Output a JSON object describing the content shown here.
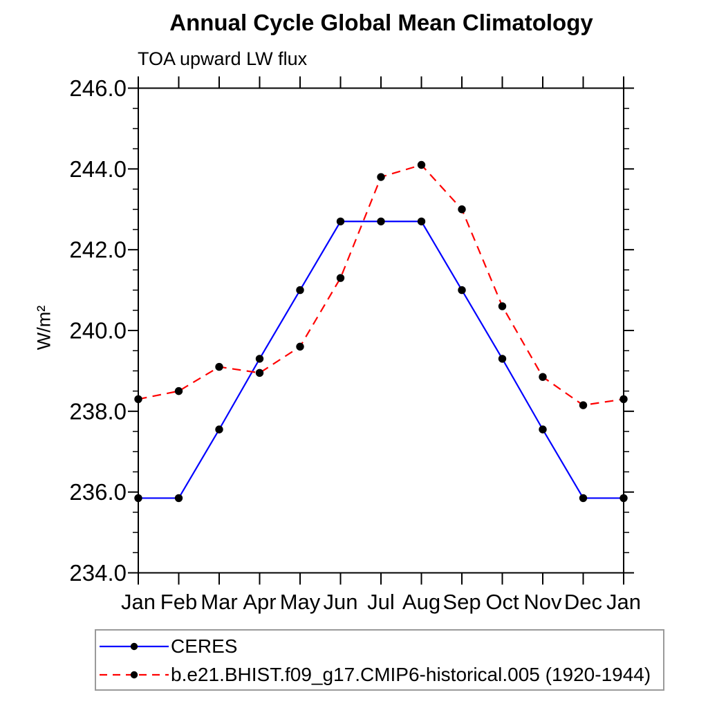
{
  "page": {
    "background": "#ffffff",
    "text_color": "#000000",
    "axis_color": "#000000",
    "legend_border_color": "#9a9a9a"
  },
  "chart_data": {
    "type": "line",
    "title": "Annual Cycle Global Mean Climatology",
    "subtitle": "TOA upward LW flux",
    "ylabel": "W/m²",
    "xlabel": "",
    "x_tick_labels": [
      "Jan",
      "Feb",
      "Mar",
      "Apr",
      "May",
      "Jun",
      "Jul",
      "Aug",
      "Sep",
      "Oct",
      "Nov",
      "Dec",
      "Jan"
    ],
    "ylim": [
      234.0,
      246.0
    ],
    "y_major_tick_labels": [
      "234.0",
      "236.0",
      "238.0",
      "240.0",
      "242.0",
      "244.0",
      "246.0"
    ],
    "y_minor_step": 0.5,
    "grid": false,
    "tick_style": "outward-all-four-sides",
    "legend_position": "below-plot-left",
    "marker_color": "#000000",
    "series": [
      {
        "name": "CERES",
        "color": "#0000ff",
        "line_style": "solid",
        "marker": "filled-circle",
        "values": [
          235.85,
          235.85,
          237.55,
          239.3,
          241.0,
          242.7,
          242.7,
          242.7,
          241.0,
          239.3,
          237.55,
          235.85,
          235.85
        ]
      },
      {
        "name": "b.e21.BHIST.f09_g17.CMIP6-historical.005 (1920-1944)",
        "color": "#ff0000",
        "line_style": "dashed",
        "marker": "filled-circle",
        "values": [
          238.3,
          238.5,
          239.1,
          238.95,
          239.6,
          241.3,
          243.8,
          244.1,
          243.0,
          240.6,
          238.85,
          238.15,
          238.3
        ]
      }
    ]
  }
}
